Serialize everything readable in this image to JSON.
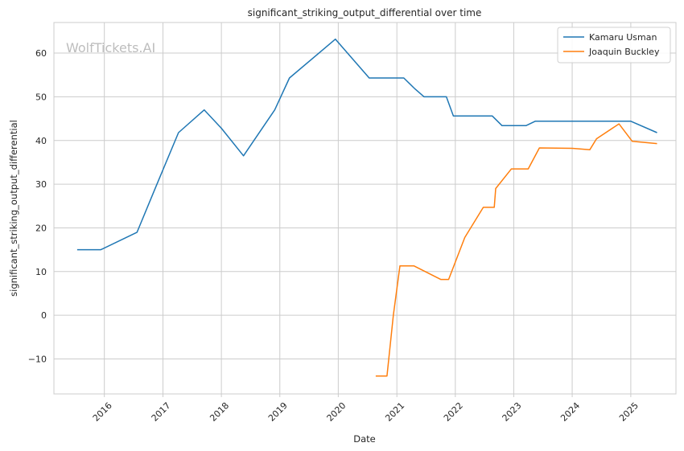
{
  "chart_data": {
    "type": "line",
    "title": "significant_striking_output_differential over time",
    "xlabel": "Date",
    "ylabel": "significant_striking_output_differential",
    "watermark": "WolfTickets.AI",
    "xlim": [
      "2015-02-20",
      "2025-10-10"
    ],
    "ylim": [
      -18,
      67
    ],
    "x_ticks": [
      "2016-01-01",
      "2017-01-01",
      "2018-01-01",
      "2019-01-01",
      "2020-01-01",
      "2021-01-01",
      "2022-01-01",
      "2023-01-01",
      "2024-01-01",
      "2025-01-01"
    ],
    "x_tick_labels": [
      "2016",
      "2017",
      "2018",
      "2019",
      "2020",
      "2021",
      "2022",
      "2023",
      "2024",
      "2025"
    ],
    "y_ticks": [
      -10,
      0,
      10,
      20,
      30,
      40,
      50,
      60
    ],
    "y_tick_labels": [
      "−10",
      "0",
      "10",
      "20",
      "30",
      "40",
      "50",
      "60"
    ],
    "grid": true,
    "legend_position": "top-right",
    "series": [
      {
        "name": "Kamaru Usman",
        "color": "#1f77b4",
        "points": [
          [
            "2015-07-15",
            15.0
          ],
          [
            "2015-12-10",
            15.0
          ],
          [
            "2016-07-23",
            19.0
          ],
          [
            "2016-11-19",
            29.5
          ],
          [
            "2017-04-08",
            41.8
          ],
          [
            "2017-09-16",
            47.0
          ],
          [
            "2018-01-01",
            42.8
          ],
          [
            "2018-05-19",
            36.5
          ],
          [
            "2018-11-30",
            47.0
          ],
          [
            "2019-03-02",
            54.3
          ],
          [
            "2019-12-14",
            63.2
          ],
          [
            "2020-07-12",
            54.3
          ],
          [
            "2021-02-13",
            54.3
          ],
          [
            "2021-04-24",
            51.8
          ],
          [
            "2021-06-20",
            50.0
          ],
          [
            "2021-11-06",
            50.0
          ],
          [
            "2021-12-20",
            45.6
          ],
          [
            "2022-08-20",
            45.6
          ],
          [
            "2022-10-20",
            43.4
          ],
          [
            "2023-03-18",
            43.4
          ],
          [
            "2023-05-15",
            44.4
          ],
          [
            "2023-10-01",
            44.4
          ],
          [
            "2025-01-01",
            44.4
          ],
          [
            "2025-06-14",
            41.8
          ]
        ]
      },
      {
        "name": "Joaquin Buckley",
        "color": "#ff7f0e",
        "points": [
          [
            "2020-08-22",
            -13.9
          ],
          [
            "2020-10-31",
            -13.9
          ],
          [
            "2020-12-10",
            0.0
          ],
          [
            "2021-01-20",
            11.3
          ],
          [
            "2021-04-17",
            11.3
          ],
          [
            "2021-10-02",
            8.2
          ],
          [
            "2021-11-20",
            8.2
          ],
          [
            "2022-03-01",
            17.8
          ],
          [
            "2022-06-25",
            24.7
          ],
          [
            "2022-09-01",
            24.7
          ],
          [
            "2022-09-10",
            29.0
          ],
          [
            "2022-12-17",
            33.5
          ],
          [
            "2023-04-01",
            33.5
          ],
          [
            "2023-06-10",
            38.3
          ],
          [
            "2024-01-01",
            38.2
          ],
          [
            "2024-04-20",
            37.9
          ],
          [
            "2024-06-01",
            40.4
          ],
          [
            "2024-10-19",
            43.8
          ],
          [
            "2025-01-10",
            39.8
          ],
          [
            "2025-06-14",
            39.3
          ]
        ]
      }
    ]
  }
}
